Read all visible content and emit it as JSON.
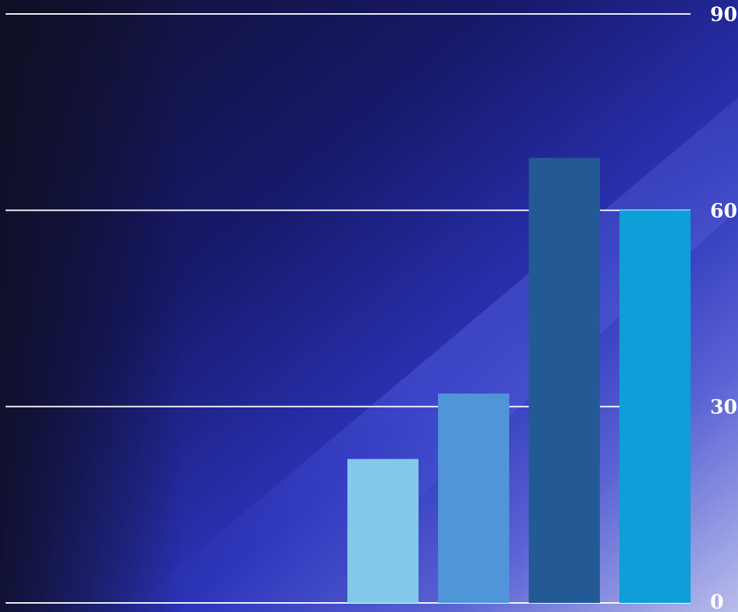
{
  "chart_data": {
    "type": "bar",
    "categories": [
      "",
      "",
      "",
      ""
    ],
    "values": [
      22,
      32,
      68,
      60
    ],
    "bar_colors": [
      "#82C9EB",
      "#4F95D8",
      "#235A96",
      "#0E9ED8"
    ],
    "title": "",
    "xlabel": "",
    "ylabel": "",
    "ylim": [
      0,
      90
    ],
    "yticks": [
      0,
      30,
      60,
      90
    ],
    "ytick_labels": [
      "0",
      "30",
      "60",
      "90"
    ],
    "y_axis_side": "right",
    "grid": true,
    "gridline_color": "#ffffff",
    "background": {
      "style": "gradient",
      "dark": "#141433",
      "mid": "#1a1f8c",
      "light": "#aab0e6"
    }
  }
}
